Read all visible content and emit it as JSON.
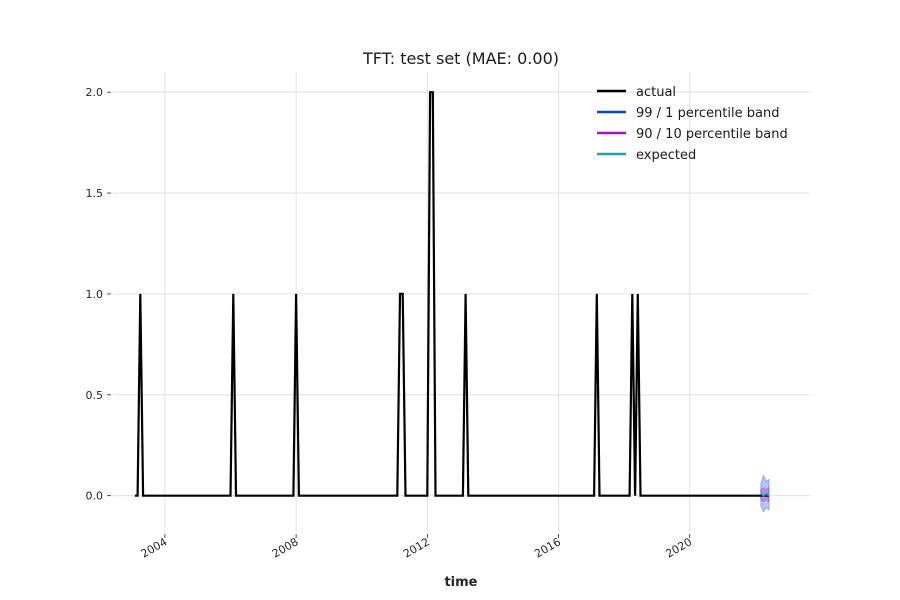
{
  "chart_data": {
    "type": "line",
    "title": "TFT: test set (MAE: 0.00)",
    "xlabel": "time",
    "ylabel": "",
    "x_ticks": [
      "2004",
      "2008",
      "2012",
      "2016",
      "2020"
    ],
    "y_ticks": [
      "0.0",
      "0.5",
      "1.0",
      "1.5",
      "2.0"
    ],
    "xlim": [
      "2002-06-01",
      "2023-09-01"
    ],
    "ylim": [
      -0.18,
      2.1
    ],
    "grid": true,
    "legend_position": "top-right",
    "series": [
      {
        "name": "actual",
        "color": "#000000",
        "points": [
          [
            "2003-02-01",
            0
          ],
          [
            "2003-03-01",
            0
          ],
          [
            "2003-04-01",
            1
          ],
          [
            "2003-05-01",
            0
          ],
          [
            "2006-01-01",
            0
          ],
          [
            "2006-02-01",
            1
          ],
          [
            "2006-03-01",
            0
          ],
          [
            "2007-12-01",
            0
          ],
          [
            "2008-01-01",
            1
          ],
          [
            "2008-02-01",
            0
          ],
          [
            "2011-02-01",
            0
          ],
          [
            "2011-03-01",
            1
          ],
          [
            "2011-04-01",
            1
          ],
          [
            "2011-05-01",
            0
          ],
          [
            "2012-01-01",
            0
          ],
          [
            "2012-02-01",
            2
          ],
          [
            "2012-03-01",
            2
          ],
          [
            "2012-04-01",
            0
          ],
          [
            "2013-02-01",
            0
          ],
          [
            "2013-03-01",
            1
          ],
          [
            "2013-04-01",
            0
          ],
          [
            "2017-02-01",
            0
          ],
          [
            "2017-03-01",
            1
          ],
          [
            "2017-04-01",
            0
          ],
          [
            "2018-03-01",
            0
          ],
          [
            "2018-04-01",
            1
          ],
          [
            "2018-05-01",
            0
          ],
          [
            "2018-06-01",
            1
          ],
          [
            "2018-07-01",
            0
          ],
          [
            "2022-06-01",
            0
          ]
        ]
      },
      {
        "name": "99 / 1 percentile band",
        "color": "#0a40d9",
        "band": {
          "x": [
            "2022-03-01",
            "2022-04-01",
            "2022-05-01",
            "2022-06-01"
          ],
          "low": [
            -0.05,
            -0.08,
            -0.06,
            -0.07
          ],
          "high": [
            0.06,
            0.1,
            0.07,
            0.08
          ]
        }
      },
      {
        "name": "90 / 10 percentile band",
        "color": "#b010c0",
        "band": {
          "x": [
            "2022-03-01",
            "2022-04-01",
            "2022-05-01",
            "2022-06-01"
          ],
          "low": [
            -0.02,
            -0.03,
            -0.02,
            -0.03
          ],
          "high": [
            0.03,
            0.04,
            0.03,
            0.04
          ]
        }
      },
      {
        "name": "expected",
        "color": "#1aa6b0",
        "points": [
          [
            "2022-03-01",
            0.01
          ],
          [
            "2022-04-01",
            0.0
          ],
          [
            "2022-05-01",
            0.01
          ],
          [
            "2022-06-01",
            0.0
          ]
        ]
      }
    ]
  }
}
